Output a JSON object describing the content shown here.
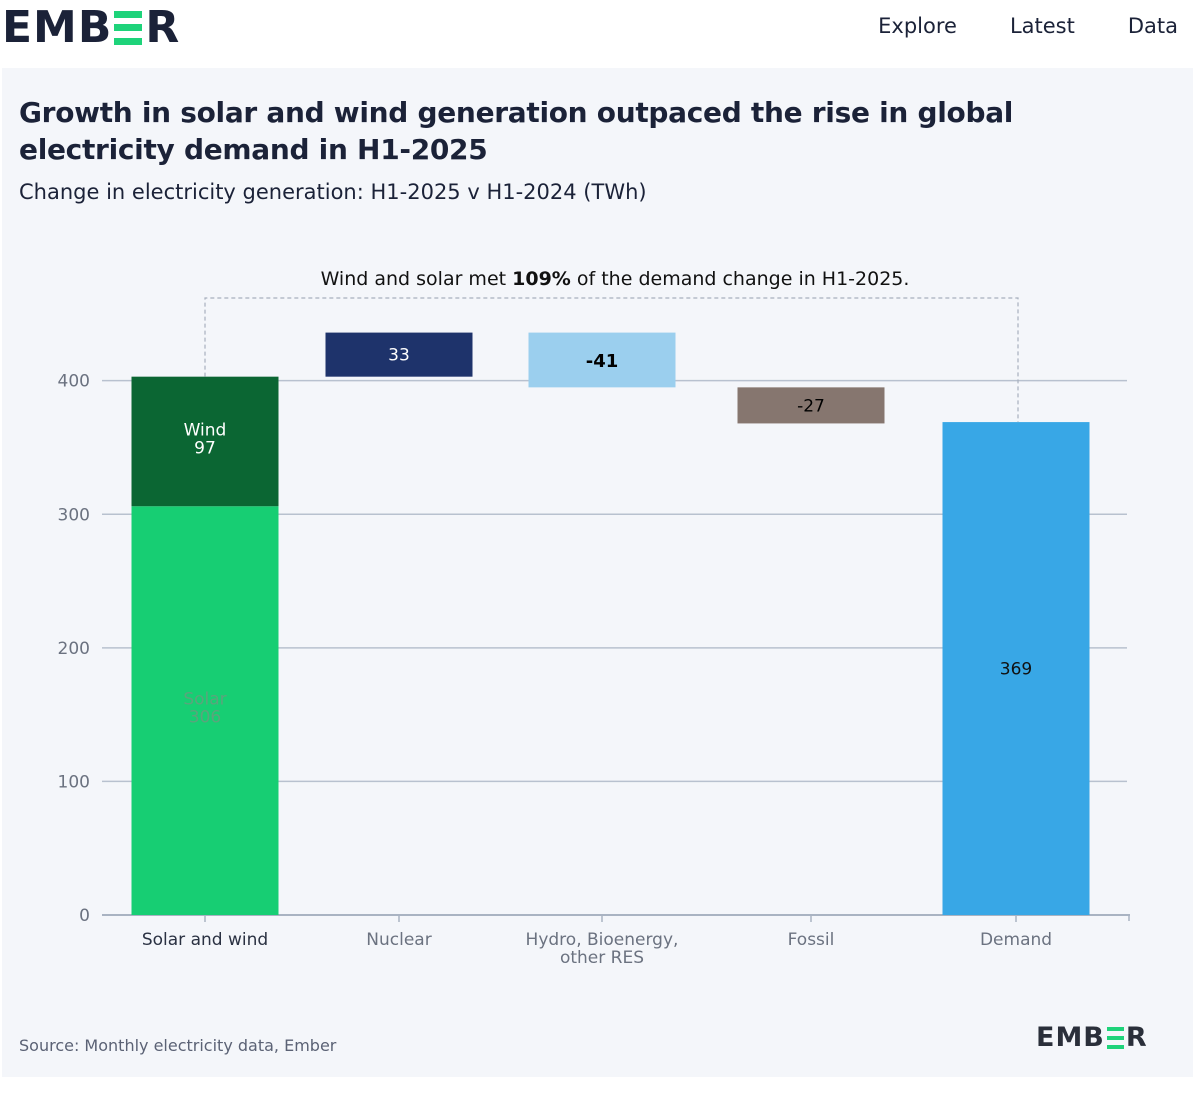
{
  "header": {
    "logo_pre": "EMB",
    "logo_post": "R",
    "nav": [
      "Explore",
      "Latest",
      "Data"
    ]
  },
  "chart_data": {
    "type": "bar",
    "subtype": "waterfall",
    "title": "Growth in solar and wind generation outpaced the rise in global electricity demand in H1-2025",
    "subtitle": "Change in electricity generation: H1-2025 v H1-2024 (TWh)",
    "annotation": {
      "prefix": "Wind and solar met ",
      "highlight": "109%",
      "suffix": " of the demand change in H1-2025."
    },
    "categories": [
      "Solar and wind",
      "Nuclear",
      "Hydro, Bioenergy, other RES",
      "Fossil",
      "Demand"
    ],
    "category_lines": [
      [
        "Solar and wind"
      ],
      [
        "Nuclear"
      ],
      [
        "Hydro, Bioenergy,",
        "other RES"
      ],
      [
        "Fossil"
      ],
      [
        "Demand"
      ]
    ],
    "series": [
      {
        "name": "Solar",
        "values": [
          306,
          null,
          null,
          null,
          null
        ],
        "color": "#17ce73",
        "label_color": "#5aa57c"
      },
      {
        "name": "Wind",
        "values": [
          97,
          null,
          null,
          null,
          null
        ],
        "color": "#0b6633",
        "label_color": "#ffffff"
      },
      {
        "name": "Nuclear",
        "values": [
          null,
          33,
          null,
          null,
          null
        ],
        "color": "#1e336b",
        "label_color": "#ffffff"
      },
      {
        "name": "Hydro, Bioenergy, other RES",
        "values": [
          null,
          null,
          -41,
          null,
          null
        ],
        "color": "#9bcfee",
        "label_color": "#000000"
      },
      {
        "name": "Fossil",
        "values": [
          null,
          null,
          null,
          -27,
          null
        ],
        "color": "#86766f",
        "label_color": "#000000"
      },
      {
        "name": "Demand",
        "values": [
          null,
          null,
          null,
          null,
          369
        ],
        "color": "#38a7e6",
        "label_color": "#111111"
      }
    ],
    "waterfall_steps": [
      {
        "category": "Solar and wind",
        "start": 0,
        "end": 403
      },
      {
        "category": "Nuclear",
        "start": 403,
        "end": 436
      },
      {
        "category": "Hydro, Bioenergy, other RES",
        "start": 436,
        "end": 395
      },
      {
        "category": "Fossil",
        "start": 395,
        "end": 368
      },
      {
        "category": "Demand",
        "start": 0,
        "end": 369
      }
    ],
    "data_labels": {
      "solar": {
        "name": "Solar",
        "value": "306"
      },
      "wind": {
        "name": "Wind",
        "value": "97"
      },
      "nuclear": "33",
      "hydro": "-41",
      "fossil": "-27",
      "demand": "369"
    },
    "yticks": [
      0,
      100,
      200,
      300,
      400
    ],
    "ylim": [
      0,
      460
    ],
    "grid": true,
    "xlabel": "",
    "ylabel": ""
  },
  "footer": {
    "source": "Source: Monthly electricity data, Ember"
  }
}
